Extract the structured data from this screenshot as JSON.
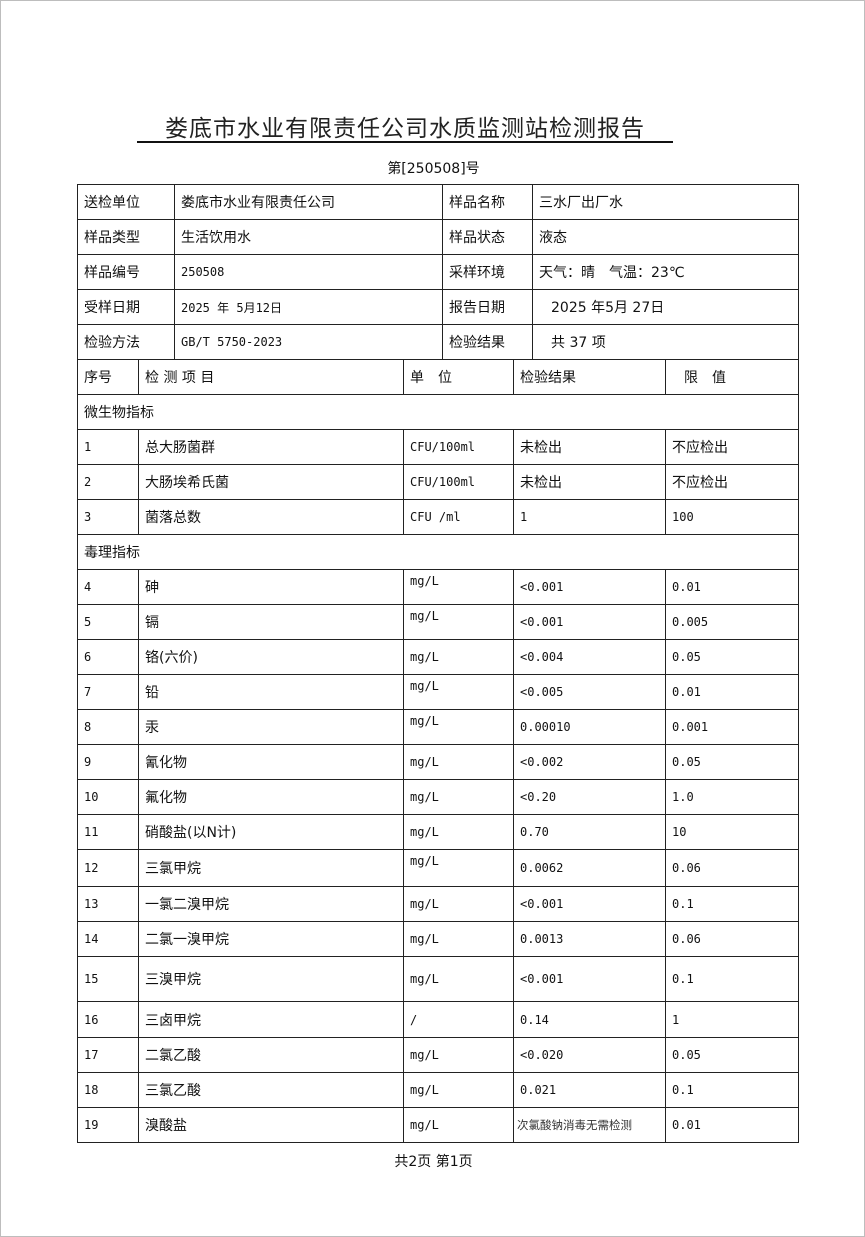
{
  "title": "娄底市水业有限责任公司水质监测站检测报告",
  "report_no": "第[250508]号",
  "info": [
    {
      "label1": "送检单位",
      "value1": "娄底市水业有限责任公司",
      "label2": "样品名称",
      "value2": "三水厂出厂水"
    },
    {
      "label1": "样品类型",
      "value1": "生活饮用水",
      "label2": "样品状态",
      "value2": "液态"
    },
    {
      "label1": "样品编号",
      "value1": "250508",
      "label2": "采样环境",
      "value2": "天气：晴　气温：23℃"
    },
    {
      "label1": "受样日期",
      "value1": "2025 年 5月12日",
      "label2": "报告日期",
      "value2": "2025 年5月 27日"
    },
    {
      "label1": "检验方法",
      "value1": "GB/T 5750-2023",
      "label2": "检验结果",
      "value2": "共  37 项"
    }
  ],
  "columns": {
    "no": "序号",
    "item": "检 测 项 目",
    "unit": "单　位",
    "result": "检验结果",
    "limit": "限　值"
  },
  "sections": [
    {
      "name": "微生物指标",
      "rows": [
        {
          "no": "1",
          "item": "总大肠菌群",
          "unit": "CFU/100ml",
          "result": "未检出",
          "limit": "不应检出"
        },
        {
          "no": "2",
          "item": "大肠埃希氏菌",
          "unit": "CFU/100ml",
          "result": "未检出",
          "limit": "不应检出"
        },
        {
          "no": "3",
          "item": "菌落总数",
          "unit": "CFU /ml",
          "result": "1",
          "limit": "100"
        }
      ]
    },
    {
      "name": "毒理指标",
      "rows": [
        {
          "no": "4",
          "item": "砷",
          "unit": "mg/L",
          "result": "<0.001",
          "limit": "0.01"
        },
        {
          "no": "5",
          "item": "镉",
          "unit": "mg/L",
          "result": "<0.001",
          "limit": "0.005"
        },
        {
          "no": "6",
          "item": "铬(六价)",
          "unit": "mg/L",
          "result": "<0.004",
          "limit": "0.05"
        },
        {
          "no": "7",
          "item": "铅",
          "unit": "mg/L",
          "result": "<0.005",
          "limit": "0.01"
        },
        {
          "no": "8",
          "item": "汞",
          "unit": "mg/L",
          "result": "0.00010",
          "limit": "0.001"
        },
        {
          "no": "9",
          "item": "氰化物",
          "unit": "mg/L",
          "result": "<0.002",
          "limit": "0.05"
        },
        {
          "no": "10",
          "item": "氟化物",
          "unit": "mg/L",
          "result": "<0.20",
          "limit": "1.0"
        },
        {
          "no": "11",
          "item": "硝酸盐(以N计)",
          "unit": "mg/L",
          "result": "0.70",
          "limit": "10"
        },
        {
          "no": "12",
          "item": "三氯甲烷",
          "unit": "mg/L",
          "result": "0.0062",
          "limit": "0.06"
        },
        {
          "no": "13",
          "item": "一氯二溴甲烷",
          "unit": "mg/L",
          "result": "<0.001",
          "limit": "0.1"
        },
        {
          "no": "14",
          "item": "二氯一溴甲烷",
          "unit": "mg/L",
          "result": "0.0013",
          "limit": "0.06"
        },
        {
          "no": "15",
          "item": "三溴甲烷",
          "unit": "mg/L",
          "result": "<0.001",
          "limit": "0.1"
        },
        {
          "no": "16",
          "item": "三卤甲烷",
          "unit": "/",
          "result": "0.14",
          "limit": "1"
        },
        {
          "no": "17",
          "item": "二氯乙酸",
          "unit": "mg/L",
          "result": "<0.020",
          "limit": "0.05"
        },
        {
          "no": "18",
          "item": "三氯乙酸",
          "unit": "mg/L",
          "result": "0.021",
          "limit": "0.1"
        },
        {
          "no": "19",
          "item": "溴酸盐",
          "unit": "mg/L",
          "result": "次氯酸钠消毒无需检测",
          "limit": "0.01"
        }
      ]
    }
  ],
  "footer": "共2页 第1页"
}
